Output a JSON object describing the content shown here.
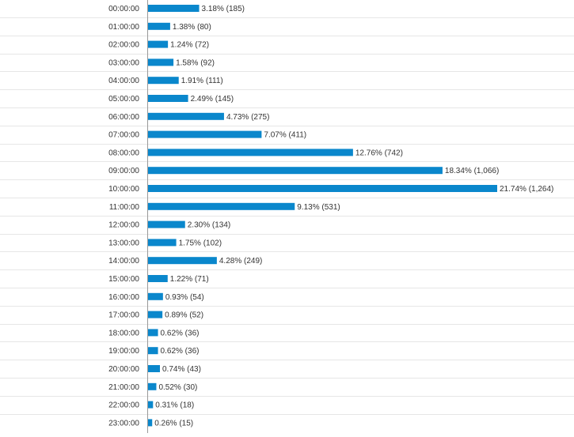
{
  "chart_data": {
    "type": "bar",
    "orientation": "horizontal",
    "categories": [
      "00:00:00",
      "01:00:00",
      "02:00:00",
      "03:00:00",
      "04:00:00",
      "05:00:00",
      "06:00:00",
      "07:00:00",
      "08:00:00",
      "09:00:00",
      "10:00:00",
      "11:00:00",
      "12:00:00",
      "13:00:00",
      "14:00:00",
      "15:00:00",
      "16:00:00",
      "17:00:00",
      "18:00:00",
      "19:00:00",
      "20:00:00",
      "21:00:00",
      "22:00:00",
      "23:00:00"
    ],
    "values": [
      185,
      80,
      72,
      92,
      111,
      145,
      275,
      411,
      742,
      1066,
      1264,
      531,
      134,
      102,
      249,
      71,
      54,
      52,
      36,
      36,
      43,
      30,
      18,
      15
    ],
    "labels": [
      "3.18% (185)",
      "1.38% (80)",
      "1.24% (72)",
      "1.58% (92)",
      "1.91% (111)",
      "2.49% (145)",
      "4.73% (275)",
      "7.07% (411)",
      "12.76% (742)",
      "18.34% (1,066)",
      "21.74% (1,264)",
      "9.13% (531)",
      "2.30% (134)",
      "1.75% (102)",
      "4.28% (249)",
      "1.22% (71)",
      "0.93% (54)",
      "0.89% (52)",
      "0.62% (36)",
      "0.62% (36)",
      "0.74% (43)",
      "0.52% (30)",
      "0.31% (18)",
      "0.26% (15)"
    ],
    "title": "",
    "xlabel": "",
    "ylabel": "",
    "grid": true,
    "legend": "none",
    "colors": {
      "bar": "#0a87cc",
      "grid": "#e6e6e6",
      "axis": "#999999",
      "text": "#333333"
    }
  }
}
